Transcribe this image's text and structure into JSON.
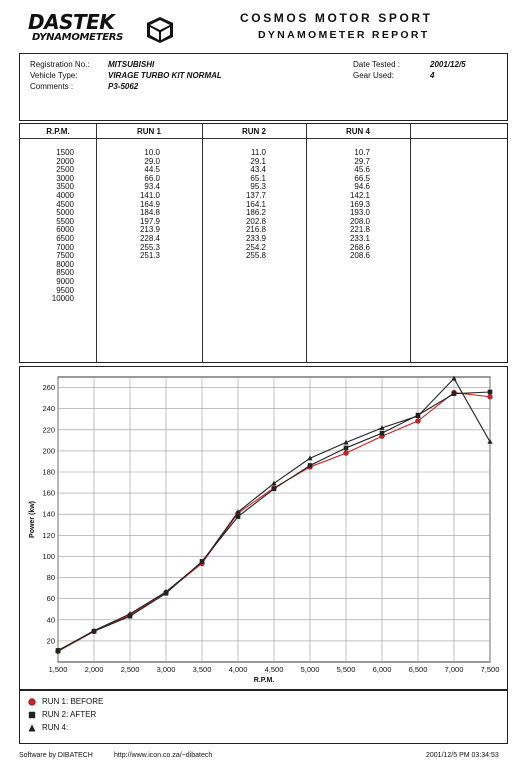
{
  "header": {
    "logo_main": "DASTEK",
    "logo_sub": "DYNAMOMETERS",
    "company": "COSMOS MOTOR SPORT",
    "report_title": "DYNAMOMETER REPORT"
  },
  "info": {
    "registration_label": "Registration No.:",
    "registration_value": "MITSUBISHI",
    "vehicle_label": "Vehicle Type:",
    "vehicle_value": "VIRAGE TURBO KIT NORMAL",
    "comments_label": "Comments :",
    "comments_value": "P3-5062",
    "date_label": "Date Tested :",
    "date_value": "2001/12/5",
    "gear_label": "Gear Used:",
    "gear_value": "4"
  },
  "table": {
    "headers": [
      "R.P.M.",
      "RUN 1",
      "RUN 2",
      "RUN 4"
    ],
    "rpm": [
      "1500",
      "2000",
      "2500",
      "3000",
      "3500",
      "4000",
      "4500",
      "5000",
      "5500",
      "6000",
      "6500",
      "7000",
      "7500",
      "8000",
      "8500",
      "9000",
      "9500",
      "10000"
    ],
    "run1": [
      "10.0",
      "29.0",
      "44.5",
      "66.0",
      "93.4",
      "141.0",
      "164.9",
      "184.8",
      "197.9",
      "213.9",
      "228.4",
      "255.3",
      "251.3"
    ],
    "run2": [
      "11.0",
      "29.1",
      "43.4",
      "65.1",
      "95.3",
      "137.7",
      "164.1",
      "186.2",
      "202.8",
      "216.8",
      "233.9",
      "254.2",
      "255.8"
    ],
    "run4": [
      "10.7",
      "29.7",
      "45.6",
      "66.5",
      "94.6",
      "142.1",
      "169.3",
      "193.0",
      "208.0",
      "221.8",
      "233.1",
      "268.6",
      "208.6"
    ]
  },
  "chart_data": {
    "type": "line",
    "xlabel": "R.P.M.",
    "ylabel": "Power (kw)",
    "x_ticks": [
      "1,500",
      "2,000",
      "2,500",
      "3,000",
      "3,500",
      "4,000",
      "4,500",
      "5,000",
      "5,500",
      "6,000",
      "6,500",
      "7,000",
      "7,500"
    ],
    "y_ticks": [
      "20",
      "40",
      "60",
      "80",
      "100",
      "120",
      "140",
      "160",
      "180",
      "200",
      "220",
      "240",
      "260"
    ],
    "xlim": [
      1500,
      7500
    ],
    "ylim": [
      0,
      270
    ],
    "grid": true,
    "x": [
      1500,
      2000,
      2500,
      3000,
      3500,
      4000,
      4500,
      5000,
      5500,
      6000,
      6500,
      7000,
      7500
    ],
    "series": [
      {
        "name": "RUN 1: BEFORE",
        "color": "#cc2222",
        "marker": "circle",
        "values": [
          10.0,
          29.0,
          44.5,
          66.0,
          93.4,
          141.0,
          164.9,
          184.8,
          197.9,
          213.9,
          228.4,
          255.3,
          251.3
        ]
      },
      {
        "name": "RUN 2: AFTER",
        "color": "#222222",
        "marker": "square",
        "values": [
          11.0,
          29.1,
          43.4,
          65.1,
          95.3,
          137.7,
          164.1,
          186.2,
          202.8,
          216.8,
          233.9,
          254.2,
          255.8
        ]
      },
      {
        "name": "RUN 4:",
        "color": "#222222",
        "marker": "triangle",
        "values": [
          10.7,
          29.7,
          45.6,
          66.5,
          94.6,
          142.1,
          169.3,
          193.0,
          208.0,
          221.8,
          233.1,
          268.6,
          208.6
        ]
      }
    ]
  },
  "footer": {
    "software": "Software by DIBATECH",
    "url": "http://www.icon.co.za/~dibatech",
    "timestamp": "2001/12/5 PM 03:34:53"
  }
}
